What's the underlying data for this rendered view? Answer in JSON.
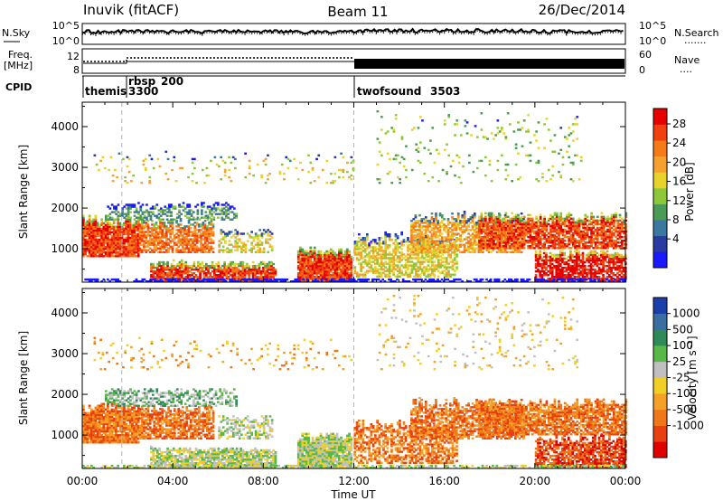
{
  "header": {
    "station": "Inuvik (fitACF)",
    "beam": "Beam 11",
    "date": "26/Dec/2014"
  },
  "noise_panel": {
    "left_label": "N.Sky",
    "left_ticks": [
      "10^5",
      "10^0"
    ],
    "right_ticks": [
      "10^5",
      "10^0"
    ],
    "right_label": "N.Search",
    "right_label_dots": "......."
  },
  "freq_panel": {
    "left_label_1": "Freq.",
    "left_label_2": "[MHz]",
    "left_ticks": [
      "12",
      "8"
    ],
    "right_ticks": [
      "60",
      "0"
    ],
    "right_label": "Nave",
    "right_label_dots": "...."
  },
  "cpid_panel": {
    "label": "CPID",
    "segments": [
      {
        "name": "themis",
        "id": "3300",
        "start_hour": 0.0,
        "end_hour": 1.75
      },
      {
        "name": "rbsp",
        "id": "200",
        "start_hour": 1.75,
        "end_hour": 12.0
      },
      {
        "name": "twofsound",
        "id": "3503",
        "start_hour": 12.0,
        "end_hour": 24.0
      }
    ]
  },
  "chart_data": [
    {
      "type": "heatmap",
      "quantity": "Power",
      "ylabel": "Slant Range [km]",
      "xlabel": "Time UT",
      "xlim_hours": [
        0,
        24
      ],
      "ylim": [
        180,
        4600
      ],
      "yticks": [
        1000,
        2000,
        3000,
        4000
      ],
      "xticks": [
        "00:00",
        "04:00",
        "08:00",
        "12:00",
        "16:00",
        "20:00",
        "00:00"
      ],
      "colorbar": {
        "label": "Power [dB]",
        "ticks": [
          "4",
          "8",
          "12",
          "16",
          "20",
          "24",
          "28"
        ],
        "colors": [
          "#1a1aff",
          "#2a3aa0",
          "#3a78a0",
          "#4a9a58",
          "#8cc83a",
          "#e8d22c",
          "#f5a030",
          "#f57a18",
          "#f04010",
          "#e60000"
        ]
      }
    },
    {
      "type": "heatmap",
      "quantity": "Velocity",
      "ylabel": "Slant Range [km]",
      "xlabel": "Time UT",
      "xlim_hours": [
        0,
        24
      ],
      "ylim": [
        180,
        4600
      ],
      "yticks": [
        1000,
        2000,
        3000,
        4000
      ],
      "xticks": [
        "00:00",
        "04:00",
        "08:00",
        "12:00",
        "16:00",
        "20:00",
        "00:00"
      ],
      "colorbar": {
        "label": "Velocity [m s⁻¹]",
        "ticks": [
          "1000",
          "500",
          "100",
          "25",
          "-25",
          "-100",
          "-500",
          "-1000"
        ],
        "colors": [
          "#1c3ea8",
          "#3a6ea0",
          "#2f8a5a",
          "#58b848",
          "#c0c0c0",
          "#f0d028",
          "#f5a028",
          "#f07818",
          "#e84010",
          "#e00000"
        ]
      }
    }
  ]
}
